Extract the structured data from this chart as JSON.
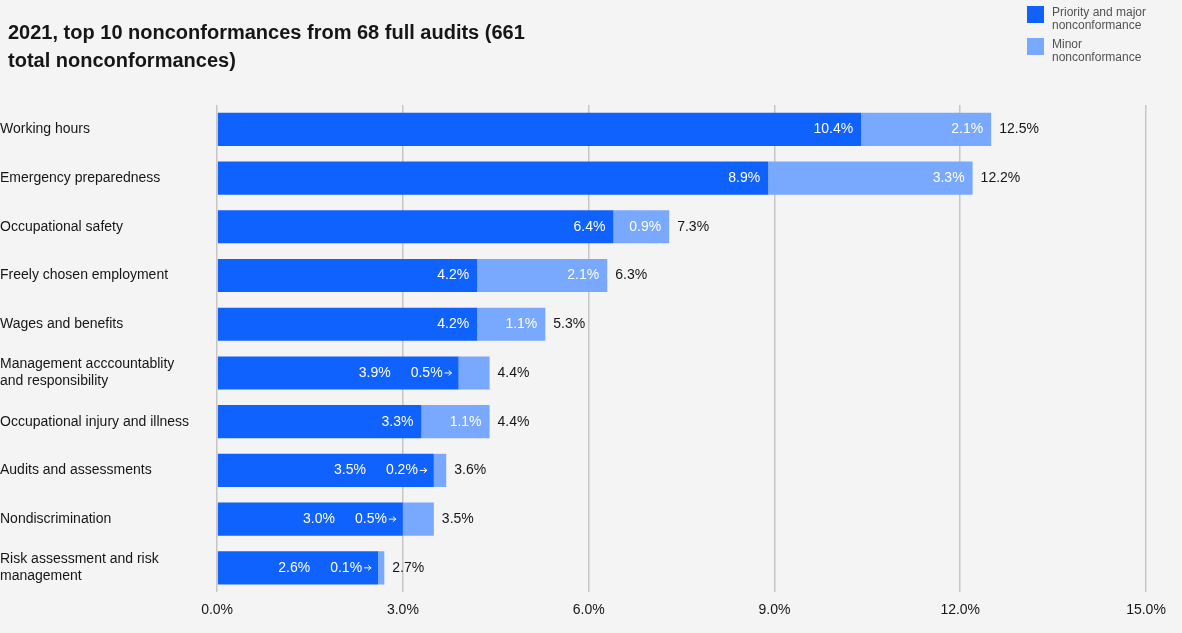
{
  "chart_data": {
    "type": "bar",
    "orientation": "horizontal",
    "stacked": true,
    "title": "2021, top 10 nonconformances from 68 full audits (661 total nonconformances)",
    "categories": [
      "Working hours",
      "Emergency preparedness",
      "Occupational safety",
      "Freely chosen employment",
      "Wages and benefits",
      "Management acccountablity and responsibility",
      "Occupational injury and illness",
      "Audits and assessments",
      "Nondiscrimination",
      "Risk assessment and risk management"
    ],
    "series": [
      {
        "name": "Priority and major nonconformance",
        "color": "#0f62fe",
        "values": [
          10.4,
          8.9,
          6.4,
          4.2,
          4.2,
          3.9,
          3.3,
          3.5,
          3.0,
          2.6
        ],
        "value_labels": [
          "10.4%",
          "8.9%",
          "6.4%",
          "4.2%",
          "4.2%",
          "3.9%",
          "3.3%",
          "3.5%",
          "3.0%",
          "2.6%"
        ]
      },
      {
        "name": "Minor nonconformance",
        "color": "#78a9ff",
        "values": [
          2.1,
          3.3,
          0.9,
          2.1,
          1.1,
          0.5,
          1.1,
          0.2,
          0.5,
          0.1
        ],
        "value_labels": [
          "2.1%",
          "3.3%",
          "0.9%",
          "2.1%",
          "1.1%",
          "0.5%",
          "1.1%",
          "0.2%",
          "0.5%",
          "0.1%"
        ]
      }
    ],
    "totals": [
      "12.5%",
      "12.2%",
      "7.3%",
      "6.3%",
      "5.3%",
      "4.4%",
      "4.4%",
      "3.6%",
      "3.5%",
      "2.7%"
    ],
    "xlim": [
      0,
      15
    ],
    "xticks": [
      {
        "value": 0,
        "label": "0.0%"
      },
      {
        "value": 3,
        "label": "3.0%"
      },
      {
        "value": 6,
        "label": "6.0%"
      },
      {
        "value": 9,
        "label": "9.0%"
      },
      {
        "value": 12,
        "label": "12.0%"
      },
      {
        "value": 15,
        "label": "15.0%"
      }
    ],
    "grid": "x",
    "legend": "top right"
  }
}
